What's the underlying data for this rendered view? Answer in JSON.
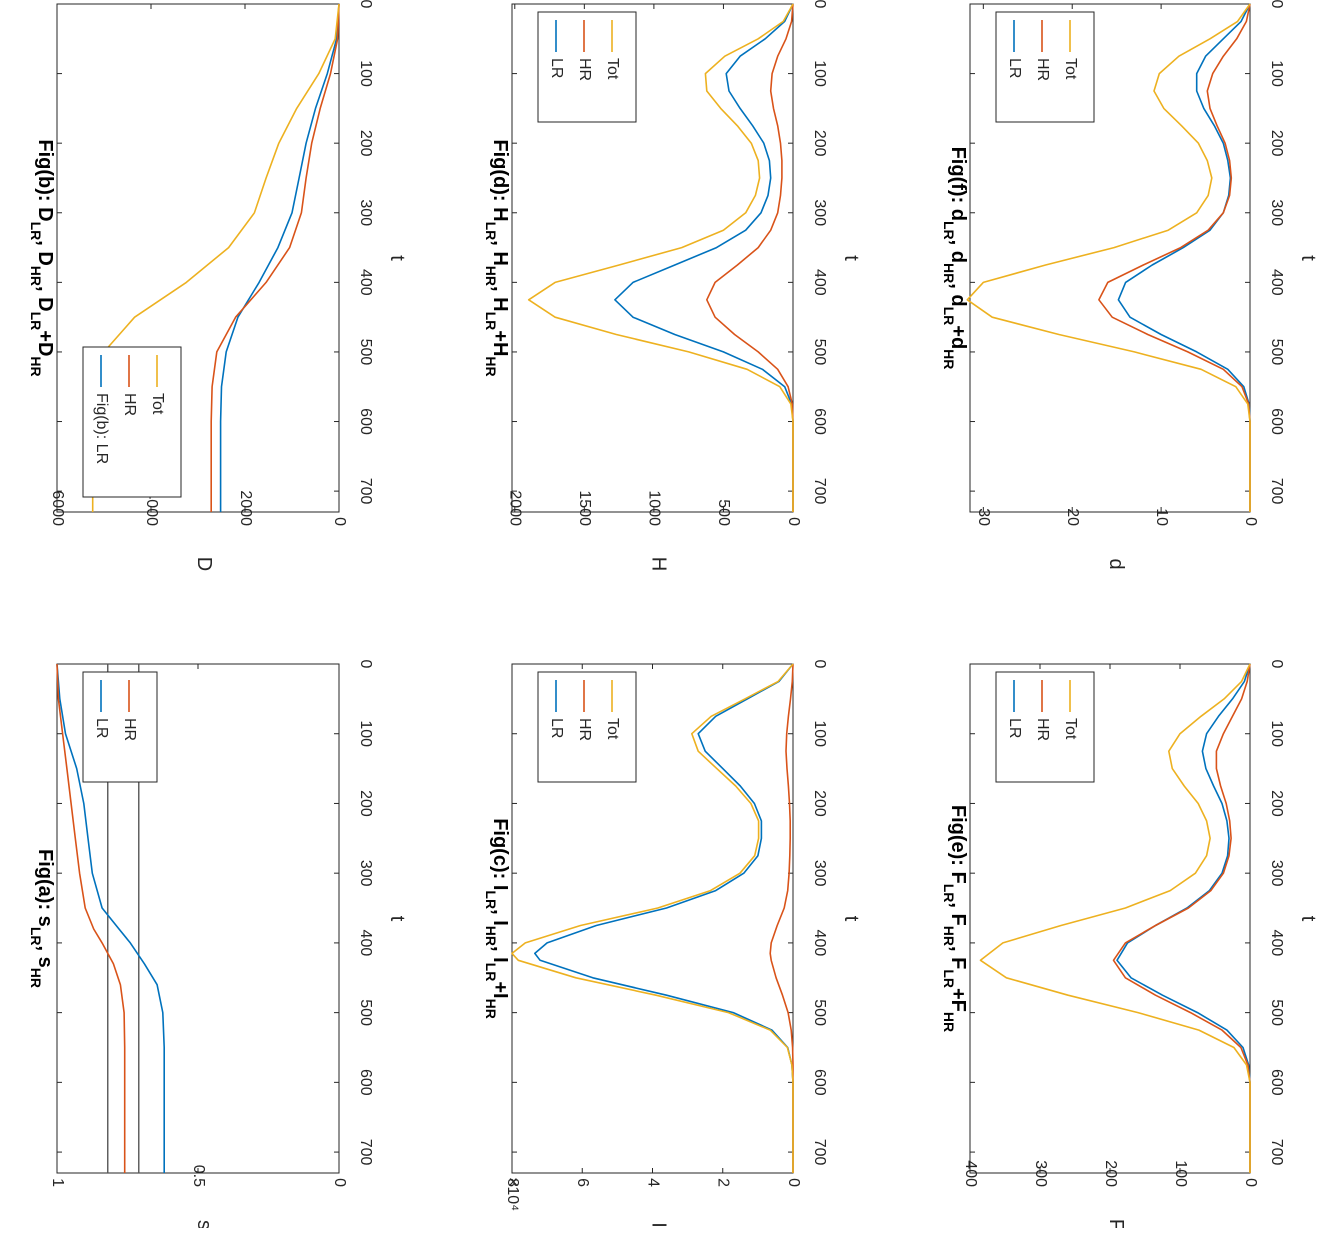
{
  "figure": {
    "orientation": "rotated 90 degrees clockwise",
    "colors": {
      "LR": "#0072BD",
      "HR": "#D95319",
      "Tot": "#EDB120",
      "ref": "#555555"
    }
  },
  "chart_data": [
    {
      "id": "a",
      "type": "line",
      "title": "Fig(a): s_LR, s_HR",
      "title_parts": {
        "main": "s",
        "sub1": "LR",
        "sep": ", s",
        "sub2": "HR"
      },
      "xlabel": "t",
      "ylabel": "s",
      "xlim": [
        0,
        730
      ],
      "ylim": [
        0,
        1
      ],
      "xticks": [
        0,
        100,
        200,
        300,
        400,
        500,
        600,
        700
      ],
      "yticks": [
        0,
        0.5,
        1
      ],
      "ytick_labels": [
        "0",
        "0.5",
        "1"
      ],
      "legend": [
        "LR",
        "HR"
      ],
      "legend_position": "top-right",
      "reference_lines": [
        0.82,
        0.71
      ],
      "x": [
        0,
        50,
        100,
        150,
        200,
        250,
        300,
        350,
        380,
        400,
        430,
        460,
        500,
        550,
        600,
        650,
        700,
        730
      ],
      "series": [
        {
          "name": "LR",
          "values": [
            1.0,
            0.99,
            0.97,
            0.93,
            0.905,
            0.89,
            0.875,
            0.84,
            0.78,
            0.74,
            0.69,
            0.645,
            0.625,
            0.62,
            0.62,
            0.62,
            0.62,
            0.62
          ]
        },
        {
          "name": "HR",
          "values": [
            1.0,
            0.995,
            0.98,
            0.965,
            0.95,
            0.935,
            0.92,
            0.9,
            0.87,
            0.84,
            0.8,
            0.775,
            0.762,
            0.76,
            0.76,
            0.76,
            0.76,
            0.76
          ]
        }
      ]
    },
    {
      "id": "b",
      "type": "line",
      "title": "Fig(b): D_LR, D_HR, D_LR+D_HR",
      "title_parts": {
        "main": "D",
        "sub1": "LR",
        "sep": ", D",
        "sub2": "HR",
        "sep2": ", D",
        "sub3": "LR",
        "sep3": "+D",
        "sub4": "HR"
      },
      "xlabel": "t",
      "ylabel": "D",
      "xlim": [
        0,
        730
      ],
      "ylim": [
        0,
        6000
      ],
      "xticks": [
        0,
        100,
        200,
        300,
        400,
        500,
        600,
        700
      ],
      "yticks": [
        0,
        2000,
        4000,
        6000
      ],
      "ytick_labels": [
        "0",
        "2000",
        "4000",
        "6000"
      ],
      "legend": [
        "Fig(b): LR",
        "HR",
        "Tot"
      ],
      "legend_position": "top-left",
      "x": [
        0,
        50,
        100,
        150,
        200,
        250,
        300,
        350,
        400,
        450,
        500,
        550,
        600,
        650,
        700,
        730
      ],
      "series": [
        {
          "name": "Fig(b): LR",
          "values": [
            0,
            50,
            250,
            500,
            700,
            850,
            1000,
            1300,
            1700,
            2150,
            2400,
            2500,
            2520,
            2520,
            2520,
            2520
          ]
        },
        {
          "name": "HR",
          "values": [
            0,
            30,
            180,
            400,
            580,
            700,
            800,
            1050,
            1550,
            2200,
            2600,
            2700,
            2720,
            2720,
            2720,
            2720
          ]
        },
        {
          "name": "Tot",
          "values": [
            0,
            80,
            430,
            900,
            1280,
            1550,
            1800,
            2350,
            3250,
            4350,
            5000,
            5200,
            5240,
            5240,
            5240,
            5240
          ]
        }
      ]
    },
    {
      "id": "c",
      "type": "line",
      "title": "Fig(c): I_LR, I_HR, I_LR+I_HR",
      "title_parts": {
        "main": "I",
        "sub1": "LR",
        "sep": ", I",
        "sub2": "HR",
        "sep2": ", I",
        "sub3": "LR",
        "sep3": "+I",
        "sub4": "HR"
      },
      "xlabel": "t",
      "ylabel": "I",
      "yscale_label": "×10⁴",
      "xlim": [
        0,
        730
      ],
      "ylim": [
        0,
        8
      ],
      "xticks": [
        0,
        100,
        200,
        300,
        400,
        500,
        600,
        700
      ],
      "yticks": [
        0,
        2,
        4,
        6,
        8
      ],
      "ytick_labels": [
        "0",
        "2",
        "4",
        "6",
        "8"
      ],
      "legend": [
        "LR",
        "HR",
        "Tot"
      ],
      "legend_position": "top-right",
      "x": [
        0,
        25,
        50,
        75,
        100,
        125,
        150,
        175,
        200,
        225,
        250,
        275,
        300,
        325,
        350,
        375,
        400,
        415,
        425,
        450,
        475,
        500,
        525,
        550,
        575,
        600,
        650,
        700,
        730
      ],
      "series": [
        {
          "name": "LR",
          "values": [
            0,
            0.4,
            1.3,
            2.2,
            2.7,
            2.5,
            2.0,
            1.5,
            1.1,
            0.9,
            0.9,
            1.0,
            1.4,
            2.2,
            3.6,
            5.6,
            7.0,
            7.35,
            7.2,
            5.7,
            3.6,
            1.7,
            0.6,
            0.15,
            0.03,
            0,
            0,
            0,
            0
          ]
        },
        {
          "name": "HR",
          "values": [
            0,
            0.02,
            0.07,
            0.13,
            0.18,
            0.2,
            0.17,
            0.13,
            0.1,
            0.08,
            0.08,
            0.09,
            0.11,
            0.15,
            0.25,
            0.45,
            0.62,
            0.65,
            0.62,
            0.48,
            0.3,
            0.14,
            0.05,
            0.01,
            0,
            0,
            0,
            0,
            0
          ]
        },
        {
          "name": "Tot",
          "values": [
            0,
            0.42,
            1.37,
            2.33,
            2.88,
            2.7,
            2.17,
            1.63,
            1.2,
            0.98,
            0.98,
            1.09,
            1.51,
            2.35,
            3.85,
            6.05,
            7.62,
            8.0,
            7.82,
            6.18,
            3.9,
            1.84,
            0.65,
            0.16,
            0.03,
            0,
            0,
            0,
            0
          ]
        }
      ]
    },
    {
      "id": "d",
      "type": "line",
      "title": "Fig(d): H_LR, H_HR, H_LR+H_HR",
      "title_parts": {
        "main": "H",
        "sub1": "LR",
        "sep": ", H",
        "sub2": "HR",
        "sep2": ", H",
        "sub3": "LR",
        "sep3": "+H",
        "sub4": "HR"
      },
      "xlabel": "t",
      "ylabel": "H",
      "xlim": [
        0,
        730
      ],
      "ylim": [
        0,
        2020
      ],
      "xticks": [
        0,
        100,
        200,
        300,
        400,
        500,
        600,
        700
      ],
      "yticks": [
        0,
        500,
        1000,
        1500,
        2000
      ],
      "ytick_labels": [
        "0",
        "500",
        "1000",
        "1500",
        "2000"
      ],
      "legend": [
        "LR",
        "HR",
        "Tot"
      ],
      "legend_position": "top-right",
      "x": [
        0,
        25,
        50,
        75,
        100,
        125,
        150,
        175,
        200,
        225,
        250,
        275,
        300,
        325,
        350,
        375,
        400,
        425,
        450,
        475,
        500,
        525,
        550,
        575,
        600,
        650,
        700,
        730
      ],
      "series": [
        {
          "name": "LR",
          "values": [
            0,
            60,
            200,
            380,
            480,
            460,
            380,
            290,
            210,
            170,
            160,
            180,
            230,
            340,
            550,
            850,
            1150,
            1280,
            1150,
            850,
            500,
            220,
            60,
            10,
            0,
            0,
            0,
            0
          ]
        },
        {
          "name": "HR",
          "values": [
            0,
            10,
            50,
            110,
            150,
            160,
            140,
            110,
            90,
            80,
            80,
            90,
            110,
            160,
            250,
            400,
            560,
            620,
            560,
            420,
            250,
            110,
            35,
            5,
            0,
            0,
            0,
            0
          ]
        },
        {
          "name": "Tot",
          "values": [
            0,
            70,
            250,
            490,
            630,
            620,
            520,
            400,
            300,
            250,
            240,
            270,
            340,
            500,
            800,
            1250,
            1710,
            1900,
            1710,
            1270,
            750,
            330,
            95,
            15,
            0,
            0,
            0,
            0
          ]
        }
      ]
    },
    {
      "id": "e",
      "type": "line",
      "title": "Fig(e): F_LR, F_HR, F_LR+F_HR",
      "title_parts": {
        "main": "F",
        "sub1": "LR",
        "sep": ", F",
        "sub2": "HR",
        "sep2": ", F",
        "sub3": "LR",
        "sep3": "+F",
        "sub4": "HR"
      },
      "xlabel": "t",
      "ylabel": "F",
      "xlim": [
        0,
        730
      ],
      "ylim": [
        0,
        400
      ],
      "xticks": [
        0,
        100,
        200,
        300,
        400,
        500,
        600,
        700
      ],
      "yticks": [
        0,
        100,
        200,
        300,
        400
      ],
      "ytick_labels": [
        "0",
        "100",
        "200",
        "300",
        "400"
      ],
      "legend": [
        "LR",
        "HR",
        "Tot"
      ],
      "legend_position": "top-right",
      "x": [
        0,
        25,
        50,
        75,
        100,
        125,
        150,
        175,
        200,
        225,
        250,
        275,
        300,
        325,
        350,
        375,
        400,
        425,
        450,
        475,
        500,
        525,
        550,
        575,
        600,
        650,
        700,
        730
      ],
      "series": [
        {
          "name": "LR",
          "values": [
            0,
            8,
            25,
            45,
            62,
            68,
            63,
            52,
            40,
            33,
            30,
            32,
            40,
            58,
            90,
            135,
            175,
            190,
            170,
            125,
            75,
            33,
            10,
            2,
            0,
            0,
            0,
            0
          ]
        },
        {
          "name": "HR",
          "values": [
            0,
            4,
            12,
            25,
            38,
            48,
            48,
            42,
            34,
            29,
            27,
            30,
            38,
            56,
            88,
            135,
            178,
            195,
            178,
            135,
            85,
            40,
            13,
            3,
            0,
            0,
            0,
            0
          ]
        },
        {
          "name": "Tot",
          "values": [
            0,
            12,
            37,
            70,
            100,
            116,
            111,
            94,
            74,
            62,
            57,
            62,
            78,
            114,
            178,
            270,
            353,
            385,
            348,
            260,
            160,
            73,
            23,
            5,
            0,
            0,
            0,
            0
          ]
        }
      ]
    },
    {
      "id": "f",
      "type": "line",
      "title": "Fig(f): d_LR, d_HR, d_LR+d_HR",
      "title_parts": {
        "main": "d",
        "sub1": "LR",
        "sep": ", d",
        "sub2": "HR",
        "sep2": ", d",
        "sub3": "LR",
        "sep3": "+d",
        "sub4": "HR"
      },
      "xlabel": "t",
      "ylabel": "d",
      "xlim": [
        0,
        730
      ],
      "ylim": [
        0,
        31.5
      ],
      "xticks": [
        0,
        100,
        200,
        300,
        400,
        500,
        600,
        700
      ],
      "yticks": [
        0,
        10,
        20,
        30
      ],
      "ytick_labels": [
        "0",
        "10",
        "20",
        "30"
      ],
      "legend": [
        "LR",
        "HR",
        "Tot"
      ],
      "legend_position": "top-right",
      "x": [
        0,
        25,
        50,
        75,
        100,
        125,
        150,
        175,
        200,
        225,
        250,
        275,
        300,
        325,
        350,
        375,
        400,
        425,
        450,
        475,
        500,
        525,
        550,
        575,
        600,
        650,
        700,
        730
      ],
      "series": [
        {
          "name": "LR",
          "values": [
            0,
            1.0,
            3.0,
            5.0,
            6.0,
            6.0,
            5.2,
            4.0,
            3.0,
            2.5,
            2.2,
            2.4,
            3.0,
            4.5,
            7.5,
            11.0,
            14.0,
            14.8,
            13.5,
            10.0,
            6.0,
            2.5,
            0.7,
            0.1,
            0,
            0,
            0,
            0
          ]
        },
        {
          "name": "HR",
          "values": [
            0,
            0.4,
            1.5,
            3.0,
            4.2,
            4.8,
            4.5,
            3.7,
            2.8,
            2.3,
            2.1,
            2.3,
            3.0,
            4.7,
            7.8,
            12.0,
            16.0,
            17.0,
            15.5,
            11.5,
            7.0,
            3.0,
            0.9,
            0.15,
            0,
            0,
            0,
            0
          ]
        },
        {
          "name": "Tot",
          "values": [
            0,
            1.4,
            4.5,
            8.0,
            10.2,
            10.8,
            9.7,
            7.7,
            5.8,
            4.8,
            4.3,
            4.7,
            6.0,
            9.2,
            15.3,
            23.0,
            30.0,
            31.8,
            29.0,
            21.5,
            13.0,
            5.5,
            1.6,
            0.25,
            0,
            0,
            0,
            0
          ]
        }
      ]
    }
  ]
}
